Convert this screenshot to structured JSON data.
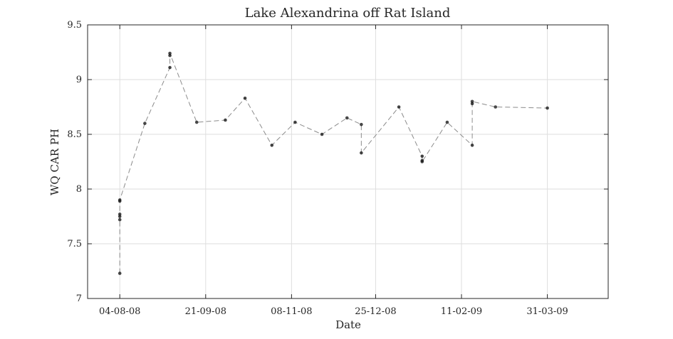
{
  "chart_data": {
    "type": "scatter",
    "title": "Lake Alexandrina off Rat Island",
    "xlabel": "Date",
    "ylabel": "WQ CAR PH",
    "x_type": "date",
    "xlim": [
      "2008-07-17",
      "2009-05-04"
    ],
    "ylim": [
      7,
      9.5
    ],
    "xticks": [
      {
        "date": "2008-08-04",
        "label": "04-08-08"
      },
      {
        "date": "2008-09-21",
        "label": "21-09-08"
      },
      {
        "date": "2008-11-08",
        "label": "08-11-08"
      },
      {
        "date": "2008-12-25",
        "label": "25-12-08"
      },
      {
        "date": "2009-02-11",
        "label": "11-02-09"
      },
      {
        "date": "2009-03-31",
        "label": "31-03-09"
      }
    ],
    "yticks": [
      {
        "value": 7,
        "label": "7"
      },
      {
        "value": 7.5,
        "label": "7.5"
      },
      {
        "value": 8,
        "label": "8"
      },
      {
        "value": 8.5,
        "label": "8.5"
      },
      {
        "value": 9,
        "label": "9"
      },
      {
        "value": 9.5,
        "label": "9.5"
      }
    ],
    "grid": true,
    "line_style": "dashed",
    "line_color": "#8c8c8c",
    "marker_color": "#1a1a1a",
    "series": [
      {
        "points": [
          {
            "x": "2008-08-04",
            "y": 7.23
          },
          {
            "x": "2008-08-04",
            "y": 7.72
          },
          {
            "x": "2008-08-04",
            "y": 7.75
          },
          {
            "x": "2008-08-04",
            "y": 7.77
          },
          {
            "x": "2008-08-04",
            "y": 7.89
          },
          {
            "x": "2008-08-04",
            "y": 7.9
          },
          {
            "x": "2008-08-18",
            "y": 8.6
          },
          {
            "x": "2008-09-01",
            "y": 9.11
          },
          {
            "x": "2008-09-01",
            "y": 9.22
          },
          {
            "x": "2008-09-01",
            "y": 9.24
          },
          {
            "x": "2008-09-16",
            "y": 8.61
          },
          {
            "x": "2008-10-02",
            "y": 8.63
          },
          {
            "x": "2008-10-13",
            "y": 8.83
          },
          {
            "x": "2008-10-28",
            "y": 8.4
          },
          {
            "x": "2008-11-10",
            "y": 8.61
          },
          {
            "x": "2008-11-25",
            "y": 8.5
          },
          {
            "x": "2008-12-09",
            "y": 8.65
          },
          {
            "x": "2008-12-17",
            "y": 8.59
          },
          {
            "x": "2008-12-17",
            "y": 8.33
          },
          {
            "x": "2009-01-07",
            "y": 8.75
          },
          {
            "x": "2009-01-20",
            "y": 8.3
          },
          {
            "x": "2009-01-20",
            "y": 8.26
          },
          {
            "x": "2009-01-20",
            "y": 8.25
          },
          {
            "x": "2009-02-03",
            "y": 8.61
          },
          {
            "x": "2009-02-17",
            "y": 8.4
          },
          {
            "x": "2009-02-17",
            "y": 8.78
          },
          {
            "x": "2009-02-17",
            "y": 8.8
          },
          {
            "x": "2009-03-02",
            "y": 8.75
          },
          {
            "x": "2009-03-31",
            "y": 8.74
          }
        ]
      }
    ]
  }
}
